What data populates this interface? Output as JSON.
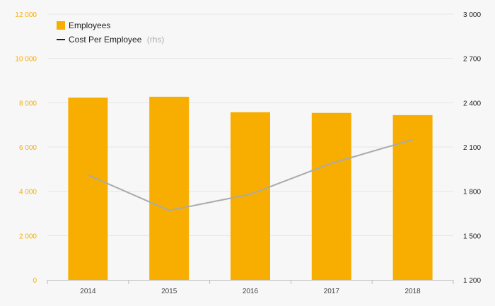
{
  "chart_data": {
    "type": "bar",
    "categories": [
      "2014",
      "2015",
      "2016",
      "2017",
      "2018"
    ],
    "series": [
      {
        "name": "Employees",
        "type": "bar",
        "axis": "left",
        "color": "#f7ae00",
        "values": [
          8230,
          8270,
          7570,
          7540,
          7440
        ]
      },
      {
        "name": "Cost Per Employee",
        "name_suffix": "(rhs)",
        "type": "line",
        "axis": "right",
        "color": "#aaaaaa",
        "values": [
          1910,
          1670,
          1780,
          1990,
          2150
        ]
      }
    ],
    "y_left": {
      "ylim": [
        0,
        12000
      ],
      "ticks": [
        0,
        2000,
        4000,
        6000,
        8000,
        10000,
        12000
      ],
      "tick_labels": [
        "0",
        "2 000",
        "4 000",
        "6 000",
        "8 000",
        "10 000",
        "12 000"
      ],
      "color": "#f7ae00"
    },
    "y_right": {
      "ylim": [
        1200,
        3000
      ],
      "ticks": [
        1200,
        1500,
        1800,
        2100,
        2400,
        2700,
        3000
      ],
      "tick_labels": [
        "1 200",
        "1 500",
        "1 800",
        "2 100",
        "2 400",
        "2 700",
        "3 000"
      ],
      "color": "#222222"
    },
    "grid": true,
    "legend": "top-left"
  }
}
